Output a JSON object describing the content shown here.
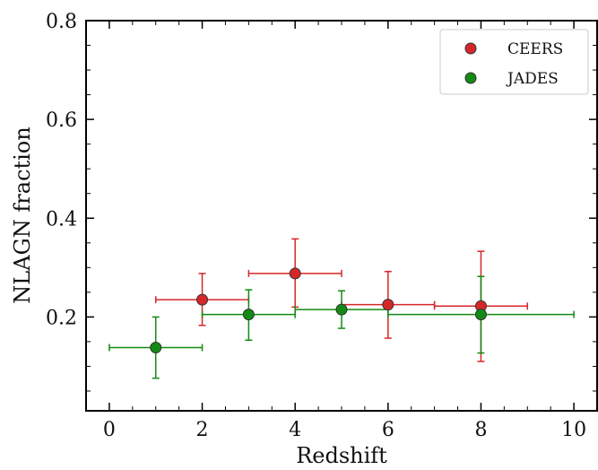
{
  "chart_data": {
    "type": "scatter",
    "xlabel": "Redshift",
    "ylabel": "NLAGN fraction",
    "xlim": [
      -0.5,
      10.5
    ],
    "ylim": [
      0.01,
      0.8
    ],
    "xticks": [
      0,
      2,
      4,
      6,
      8,
      10
    ],
    "yticks": [
      0.2,
      0.4,
      0.6,
      0.8
    ],
    "xtick_labels": [
      "0",
      "2",
      "4",
      "6",
      "8",
      "10"
    ],
    "ytick_labels": [
      "0.2",
      "0.4",
      "0.6",
      "0.8"
    ],
    "legend_position": "top-right",
    "grid": false,
    "series": [
      {
        "name": "CEERS",
        "color": "#d62728",
        "points": [
          {
            "x": 2,
            "y": 0.235,
            "xerr": 1,
            "y_low": 0.183,
            "y_high": 0.288
          },
          {
            "x": 4,
            "y": 0.288,
            "xerr": 1,
            "y_low": 0.22,
            "y_high": 0.358
          },
          {
            "x": 6,
            "y": 0.225,
            "xerr": 1,
            "y_low": 0.157,
            "y_high": 0.292
          },
          {
            "x": 8,
            "y": 0.222,
            "xerr": 1,
            "y_low": 0.11,
            "y_high": 0.333
          }
        ]
      },
      {
        "name": "JADES",
        "color": "#138a13",
        "points": [
          {
            "x": 1,
            "y": 0.138,
            "xerr": 1,
            "y_low": 0.076,
            "y_high": 0.2
          },
          {
            "x": 3,
            "y": 0.205,
            "xerr": 1,
            "y_low": 0.153,
            "y_high": 0.255
          },
          {
            "x": 5,
            "y": 0.215,
            "xerr": 1,
            "y_low": 0.177,
            "y_high": 0.253
          },
          {
            "x": 8,
            "y": 0.205,
            "xerr": 2,
            "y_low": 0.127,
            "y_high": 0.282
          }
        ]
      }
    ]
  }
}
